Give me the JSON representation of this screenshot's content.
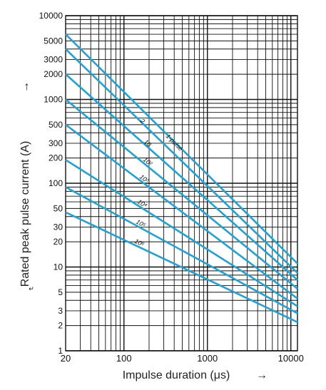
{
  "chart_data": {
    "type": "line",
    "xlabel": "Impulse duration (μs)",
    "ylabel": "Rated peak pulse current (A)",
    "xscale": "log",
    "yscale": "log",
    "xlim": [
      20,
      12000
    ],
    "ylim": [
      1,
      10000
    ],
    "xticks": [
      "20",
      "100",
      "1000",
      "10000"
    ],
    "xtick_values": [
      20,
      100,
      1000,
      10000
    ],
    "yticks": [
      "1",
      "2",
      "3",
      "5",
      "10",
      "20",
      "30",
      "50",
      "100",
      "200",
      "300",
      "500",
      "1000",
      "2000",
      "3000",
      "5000",
      "10000"
    ],
    "ytick_values": [
      1,
      2,
      3,
      5,
      10,
      20,
      30,
      50,
      100,
      200,
      300,
      500,
      1000,
      2000,
      3000,
      5000,
      10000
    ],
    "grid": true,
    "series": [
      {
        "name": "1-pulse",
        "x": [
          20,
          12000
        ],
        "y": [
          6000,
          11
        ]
      },
      {
        "name": "2",
        "x": [
          20,
          12000
        ],
        "y": [
          4000,
          8.5
        ]
      },
      {
        "name": "10",
        "x": [
          20,
          12000
        ],
        "y": [
          2000,
          7
        ]
      },
      {
        "name": "10²",
        "x": [
          20,
          12000
        ],
        "y": [
          1000,
          5.5
        ]
      },
      {
        "name": "10³",
        "x": [
          20,
          12000
        ],
        "y": [
          500,
          4.2
        ]
      },
      {
        "name": "10⁴",
        "x": [
          20,
          12000
        ],
        "y": [
          190,
          3.4
        ]
      },
      {
        "name": "10⁵",
        "x": [
          20,
          12000
        ],
        "y": [
          90,
          2.8
        ]
      },
      {
        "name": "10⁶",
        "x": [
          20,
          12000
        ],
        "y": [
          45,
          2.2
        ]
      }
    ],
    "curve_labels": [
      "1-pulse",
      "2",
      "10",
      "10²",
      "10³",
      "10⁴",
      "10⁵",
      "10⁶"
    ]
  },
  "colors": {
    "curve": "#1fa3d6",
    "grid": "#111111"
  },
  "arrows": {
    "y_arrow": "→",
    "x_arrow": "→"
  },
  "extra_mark": "↵"
}
